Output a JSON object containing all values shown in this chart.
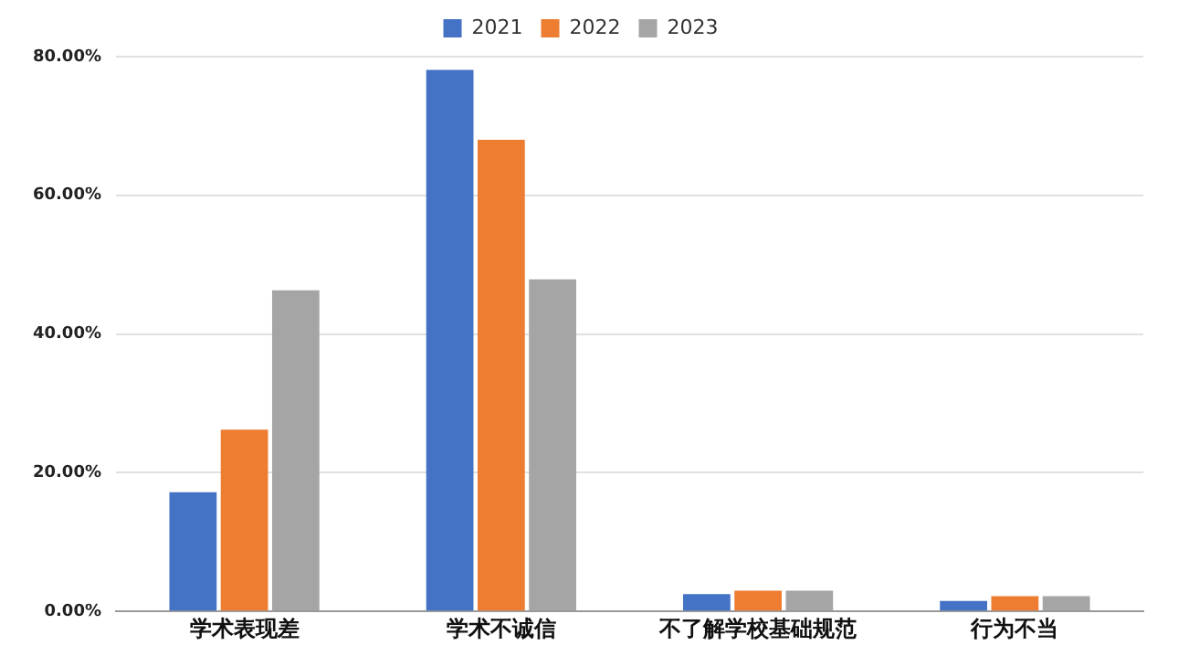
{
  "chart_data": {
    "type": "bar",
    "categories": [
      "学术表现差",
      "学术不诚信",
      "不了解学校基础规范",
      "行为不当"
    ],
    "series": [
      {
        "name": "2021",
        "color": "#4472c4",
        "values": [
          17.2,
          78.1,
          2.5,
          1.5
        ]
      },
      {
        "name": "2022",
        "color": "#ed7d31",
        "values": [
          26.2,
          68.0,
          3.0,
          2.2
        ]
      },
      {
        "name": "2023",
        "color": "#a5a5a5",
        "values": [
          46.3,
          47.9,
          3.0,
          2.2
        ]
      }
    ],
    "ylim": [
      0,
      80
    ],
    "yticks": [
      {
        "value": 0,
        "label": "0.00%"
      },
      {
        "value": 20,
        "label": "20.00%"
      },
      {
        "value": 40,
        "label": "40.00%"
      },
      {
        "value": 60,
        "label": "60.00%"
      },
      {
        "value": 80,
        "label": "80.00%"
      }
    ],
    "grid": "y",
    "legend": "top"
  }
}
